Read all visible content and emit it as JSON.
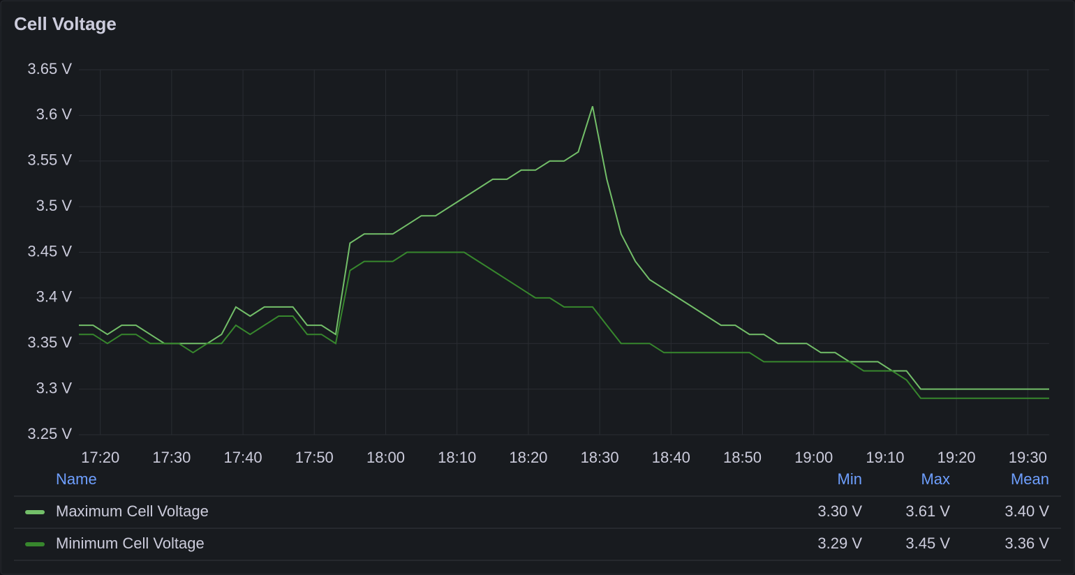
{
  "chart_data": {
    "type": "line",
    "title": "Cell Voltage",
    "x": [
      "17:17",
      "17:19",
      "17:21",
      "17:23",
      "17:25",
      "17:27",
      "17:29",
      "17:31",
      "17:33",
      "17:35",
      "17:37",
      "17:39",
      "17:41",
      "17:43",
      "17:45",
      "17:47",
      "17:49",
      "17:51",
      "17:53",
      "17:55",
      "17:57",
      "17:59",
      "18:01",
      "18:03",
      "18:05",
      "18:07",
      "18:09",
      "18:11",
      "18:13",
      "18:15",
      "18:17",
      "18:19",
      "18:21",
      "18:23",
      "18:25",
      "18:27",
      "18:29",
      "18:31",
      "18:33",
      "18:35",
      "18:37",
      "18:39",
      "18:41",
      "18:43",
      "18:45",
      "18:47",
      "18:49",
      "18:51",
      "18:53",
      "18:55",
      "18:57",
      "18:59",
      "19:01",
      "19:03",
      "19:05",
      "19:07",
      "19:09",
      "19:11",
      "19:13",
      "19:15",
      "19:17",
      "19:19",
      "19:21",
      "19:23",
      "19:25",
      "19:27",
      "19:29",
      "19:31",
      "19:33"
    ],
    "series": [
      {
        "name": "Maximum Cell Voltage",
        "color": "#73bf69",
        "stats": [
          "3.30 V",
          "3.61 V",
          "3.40 V"
        ],
        "values": [
          3.37,
          3.37,
          3.36,
          3.37,
          3.37,
          3.36,
          3.35,
          3.35,
          3.35,
          3.35,
          3.36,
          3.39,
          3.38,
          3.39,
          3.39,
          3.39,
          3.37,
          3.37,
          3.36,
          3.46,
          3.47,
          3.47,
          3.47,
          3.48,
          3.49,
          3.49,
          3.5,
          3.51,
          3.52,
          3.53,
          3.53,
          3.54,
          3.54,
          3.55,
          3.55,
          3.56,
          3.61,
          3.53,
          3.47,
          3.44,
          3.42,
          3.41,
          3.4,
          3.39,
          3.38,
          3.37,
          3.37,
          3.36,
          3.36,
          3.35,
          3.35,
          3.35,
          3.34,
          3.34,
          3.33,
          3.33,
          3.33,
          3.32,
          3.32,
          3.3,
          3.3,
          3.3,
          3.3,
          3.3,
          3.3,
          3.3,
          3.3,
          3.3,
          3.3
        ]
      },
      {
        "name": "Minimum Cell Voltage",
        "color": "#37872d",
        "stats": [
          "3.29 V",
          "3.45 V",
          "3.36 V"
        ],
        "values": [
          3.36,
          3.36,
          3.35,
          3.36,
          3.36,
          3.35,
          3.35,
          3.35,
          3.34,
          3.35,
          3.35,
          3.37,
          3.36,
          3.37,
          3.38,
          3.38,
          3.36,
          3.36,
          3.35,
          3.43,
          3.44,
          3.44,
          3.44,
          3.45,
          3.45,
          3.45,
          3.45,
          3.45,
          3.44,
          3.43,
          3.42,
          3.41,
          3.4,
          3.4,
          3.39,
          3.39,
          3.39,
          3.37,
          3.35,
          3.35,
          3.35,
          3.34,
          3.34,
          3.34,
          3.34,
          3.34,
          3.34,
          3.34,
          3.33,
          3.33,
          3.33,
          3.33,
          3.33,
          3.33,
          3.33,
          3.32,
          3.32,
          3.32,
          3.31,
          3.29,
          3.29,
          3.29,
          3.29,
          3.29,
          3.29,
          3.29,
          3.29,
          3.29,
          3.29
        ]
      }
    ],
    "xlim": [
      "17:17",
      "19:33"
    ],
    "xticks": [
      "17:20",
      "17:30",
      "17:40",
      "17:50",
      "18:00",
      "18:10",
      "18:20",
      "18:30",
      "18:40",
      "18:50",
      "19:00",
      "19:10",
      "19:20",
      "19:30"
    ],
    "ylim": [
      3.25,
      3.65
    ],
    "yticks": [
      {
        "value": 3.25,
        "label": "3.25 V"
      },
      {
        "value": 3.3,
        "label": "3.3 V"
      },
      {
        "value": 3.35,
        "label": "3.35 V"
      },
      {
        "value": 3.4,
        "label": "3.4 V"
      },
      {
        "value": 3.45,
        "label": "3.45 V"
      },
      {
        "value": 3.5,
        "label": "3.5 V"
      },
      {
        "value": 3.55,
        "label": "3.55 V"
      },
      {
        "value": 3.6,
        "label": "3.6 V"
      },
      {
        "value": 3.65,
        "label": "3.65 V"
      }
    ],
    "grid": true,
    "legend": {
      "name_header": "Name",
      "stat_headers": [
        "Min",
        "Max",
        "Mean"
      ]
    }
  }
}
